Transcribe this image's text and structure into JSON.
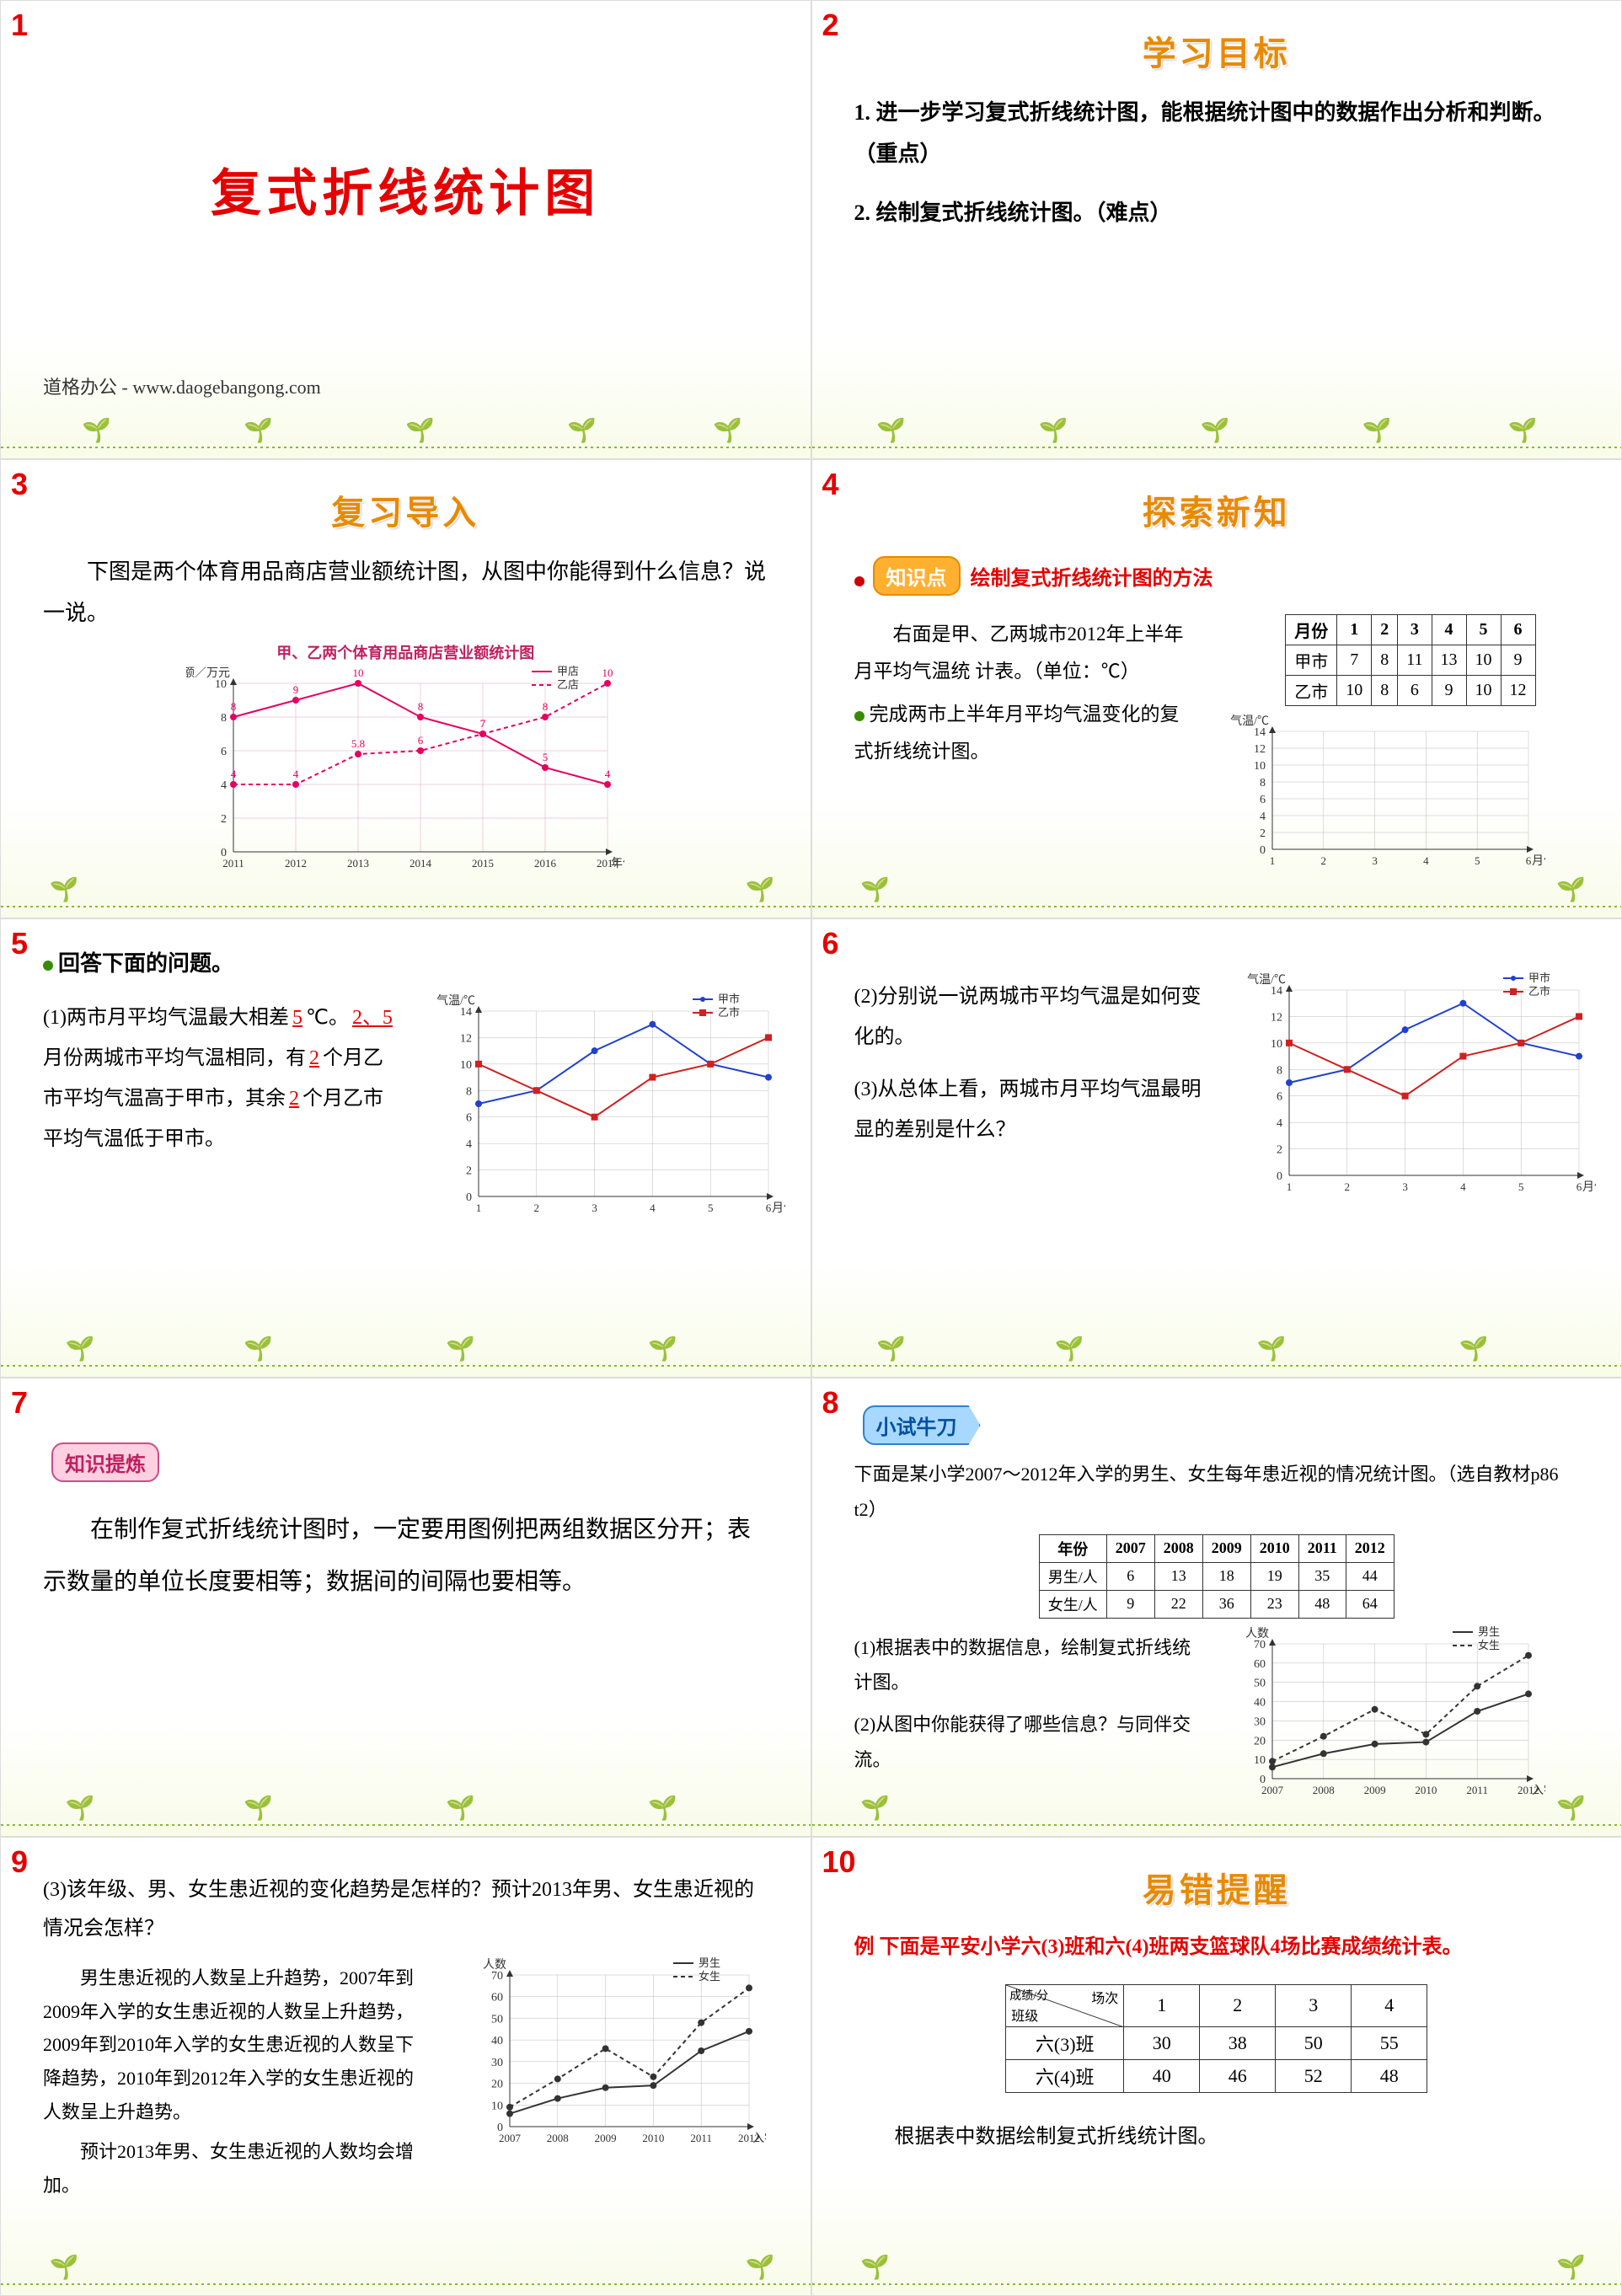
{
  "s1": {
    "title": "复式折线统计图",
    "watermark": "道格办公 - www.daogebangong.com"
  },
  "s2": {
    "title": "学习目标",
    "p1": "1. 进一步学习复式折线统计图，能根据统计图中的数据作出分析和判断。（重点）",
    "p2": "2. 绘制复式折线统计图。（难点）"
  },
  "s3": {
    "title": "复习导入",
    "intro": "下图是两个体育用品商店营业额统计图，从图中你能得到什么信息？说一说。",
    "chart": {
      "title": "甲、乙两个体育用品商店营业额统计图",
      "ylabel": "营业额／万元",
      "xlabel": "年份",
      "legend": [
        "甲店",
        "乙店"
      ],
      "legend_colors": [
        "#e60060",
        "#e60060"
      ],
      "years": [
        "2011",
        "2012",
        "2013",
        "2014",
        "2015",
        "2016",
        "2017"
      ],
      "jia": [
        8,
        9,
        10,
        8,
        7,
        5,
        4
      ],
      "yi": [
        4,
        4,
        5.8,
        6,
        7,
        8,
        10
      ],
      "ylim": [
        0,
        10
      ],
      "ytick": 2,
      "grid_color": "#e0a0c0",
      "line_colors": [
        "#e60060",
        "#e60060"
      ],
      "line_styles": [
        "solid",
        "dashed"
      ]
    }
  },
  "s4": {
    "title": "探索新知",
    "tag": "知识点",
    "tag_text": "绘制复式折线统计图的方法",
    "p1": "右面是甲、乙两城市2012年上半年月平均气温统 计表。（单位：℃）",
    "p2": "完成两市上半年月平均气温变化的复式折线统计图。",
    "table": {
      "header": [
        "月份",
        "1",
        "2",
        "3",
        "4",
        "5",
        "6"
      ],
      "rows": [
        [
          "甲市",
          "7",
          "8",
          "11",
          "13",
          "10",
          "9"
        ],
        [
          "乙市",
          "10",
          "8",
          "6",
          "9",
          "10",
          "12"
        ]
      ]
    },
    "chart": {
      "ylabel": "气温/℃",
      "xlabel": "月份",
      "ylim": [
        0,
        14
      ],
      "ytick": 2,
      "x": [
        1,
        2,
        3,
        4,
        5,
        6
      ]
    }
  },
  "s5": {
    "heading": "回答下面的问题。",
    "q1_pre": "(1)两市月平均气温最大相差",
    "q1_a": "5",
    "q1_mid": "℃。",
    "q1_b": "2、5",
    "q1_mid2": "月份两城市平均气温相同，有",
    "q1_c": "2",
    "q1_mid3": "个月乙市平均气温高于甲市，其余",
    "q1_d": "2",
    "q1_end": "个月乙市平均气温低于甲市。",
    "chart": {
      "ylabel": "气温/℃",
      "xlabel": "月份",
      "legend": [
        "甲市",
        "乙市"
      ],
      "legend_colors": [
        "#2040d0",
        "#d02020"
      ],
      "ylim": [
        0,
        14
      ],
      "ytick": 2,
      "x": [
        1,
        2,
        3,
        4,
        5,
        6
      ],
      "jia": [
        7,
        8,
        11,
        13,
        10,
        9
      ],
      "yi": [
        10,
        8,
        6,
        9,
        10,
        12
      ]
    }
  },
  "s6": {
    "q2": "(2)分别说一说两城市平均气温是如何变化的。",
    "q3": "(3)从总体上看，两城市月平均气温最明显的差别是什么？",
    "chart": {
      "ylabel": "气温/℃",
      "xlabel": "月份",
      "legend": [
        "甲市",
        "乙市"
      ],
      "legend_colors": [
        "#2040d0",
        "#d02020"
      ],
      "ylim": [
        0,
        14
      ],
      "ytick": 2,
      "x": [
        1,
        2,
        3,
        4,
        5,
        6
      ],
      "jia": [
        7,
        8,
        11,
        13,
        10,
        9
      ],
      "yi": [
        10,
        8,
        6,
        9,
        10,
        12
      ]
    }
  },
  "s7": {
    "tag": "知识提炼",
    "text": "在制作复式折线统计图时，一定要用图例把两组数据区分开；表示数量的单位长度要相等；数据间的间隔也要相等。"
  },
  "s8": {
    "tag": "小试牛刀",
    "intro": "下面是某小学2007～2012年入学的男生、女生每年患近视的情况统计图。（选自教材p86 t2）",
    "table": {
      "header": [
        "年份",
        "2007",
        "2008",
        "2009",
        "2010",
        "2011",
        "2012"
      ],
      "rows": [
        [
          "男生/人",
          "6",
          "13",
          "18",
          "19",
          "35",
          "44"
        ],
        [
          "女生/人",
          "9",
          "22",
          "36",
          "23",
          "48",
          "64"
        ]
      ]
    },
    "q1": "(1)根据表中的数据信息，绘制复式折线统计图。",
    "q2": "(2)从图中你能获得了哪些信息？与同伴交流。",
    "chart": {
      "ylabel": "人数",
      "xlabel": "入学年份",
      "legend": [
        "男生",
        "女生"
      ],
      "ylim": [
        0,
        70
      ],
      "ytick": 10,
      "x": [
        "2007",
        "2008",
        "2009",
        "2010",
        "2011",
        "2012"
      ],
      "male": [
        6,
        13,
        18,
        19,
        35,
        44
      ],
      "female": [
        9,
        22,
        36,
        23,
        48,
        64
      ],
      "line_colors": [
        "#333",
        "#333"
      ],
      "line_styles": [
        "solid",
        "dashed"
      ]
    }
  },
  "s9": {
    "q3": "(3)该年级、男、女生患近视的变化趋势是怎样的？预计2013年男、女生患近视的情况会怎样？",
    "ans": "男生患近视的人数呈上升趋势，2007年到2009年入学的女生患近视的人数呈上升趋势，2009年到2010年入学的女生患近视的人数呈下降趋势，2010年到2012年入学的女生患近视的人数呈上升趋势。",
    "ans2": "预计2013年男、女生患近视的人数均会增加。",
    "chart": {
      "ylabel": "人数",
      "xlabel": "入学年份",
      "legend": [
        "男生",
        "女生"
      ],
      "ylim": [
        0,
        70
      ],
      "ytick": 10,
      "x": [
        "2007",
        "2008",
        "2009",
        "2010",
        "2011",
        "2012"
      ],
      "male": [
        6,
        13,
        18,
        19,
        35,
        44
      ],
      "female": [
        9,
        22,
        36,
        23,
        48,
        64
      ]
    }
  },
  "s10": {
    "title": "易错提醒",
    "example": "例 下面是平安小学六(3)班和六(4)班两支篮球队4场比赛成绩统计表。",
    "table": {
      "corner_top": "场次",
      "corner_bottom": "班级",
      "corner_side": "成绩/分",
      "header": [
        "1",
        "2",
        "3",
        "4"
      ],
      "rows": [
        [
          "六(3)班",
          "30",
          "38",
          "50",
          "55"
        ],
        [
          "六(4)班",
          "40",
          "46",
          "52",
          "48"
        ]
      ]
    },
    "footer": "根据表中数据绘制复式折线统计图。"
  }
}
